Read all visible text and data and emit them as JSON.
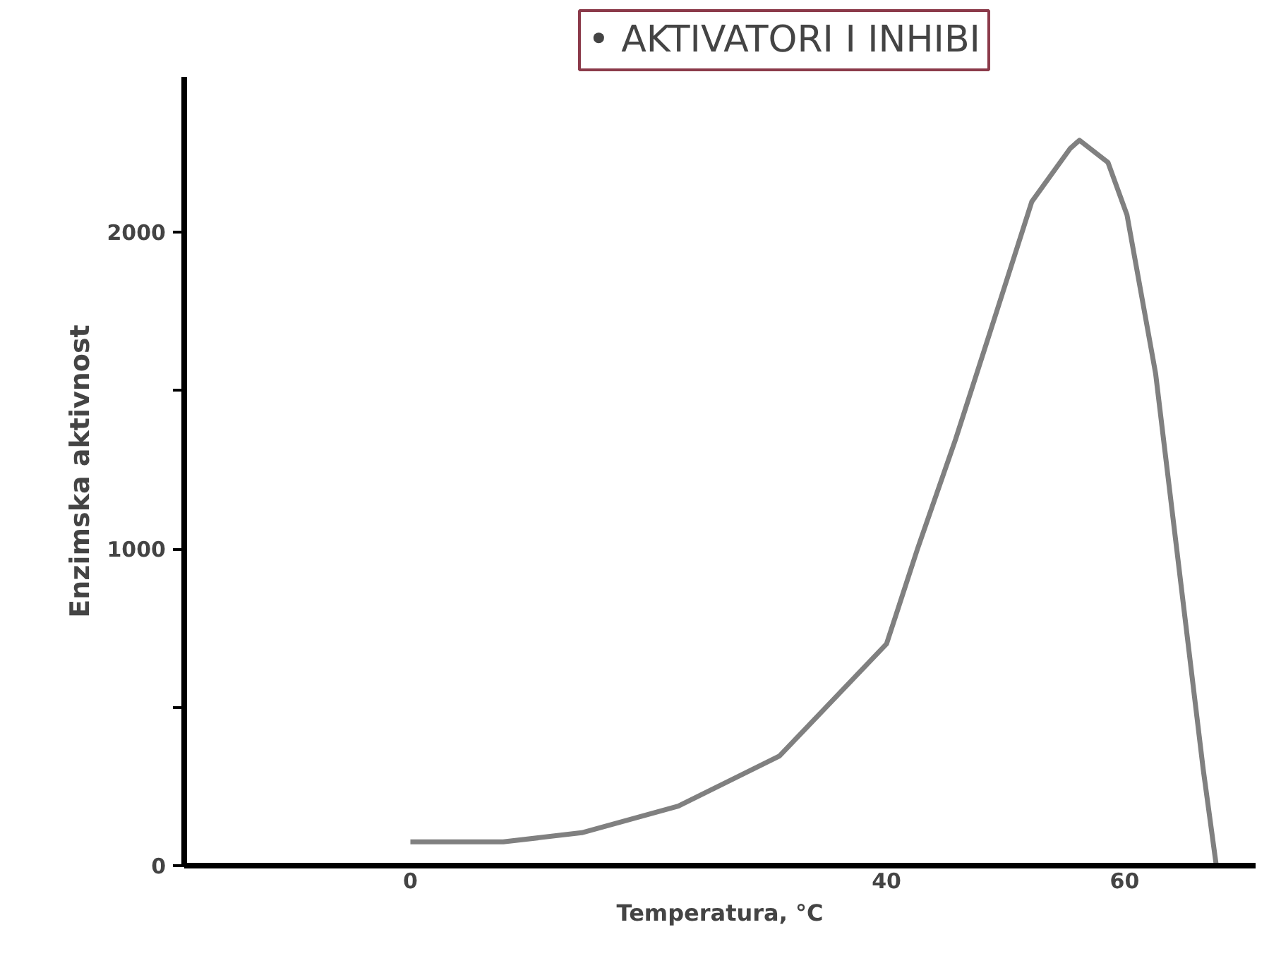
{
  "chart_data": {
    "type": "line",
    "title": "• AKTIVATORI I INHIBI",
    "xlabel": "Temperatura, °C",
    "ylabel": "Enzimska aktivnost",
    "x": [
      0,
      7.8,
      14.4,
      22.5,
      31.0,
      40,
      42.6,
      45.8,
      49.0,
      52.2,
      55.4,
      56.2,
      58.6,
      60.2,
      62.6,
      65.0,
      66.6,
      67.7
    ],
    "series": [
      {
        "color": "#808080",
        "values": [
          75,
          75,
          104,
          188,
          346,
          700,
          1000,
          1346,
          1720,
          2096,
          2263,
          2290,
          2220,
          2054,
          1554,
          804,
          304,
          0
        ]
      }
    ],
    "xlim": [
      -19,
      71
    ],
    "ylim": [
      0,
      2490
    ],
    "xticks": [
      0,
      40,
      60
    ],
    "yticks": [
      0,
      {
        "value": 500,
        "label": null
      },
      1000,
      {
        "value": 1500,
        "label": null
      },
      2000
    ],
    "grid": false,
    "marker": "none",
    "line_style": "solid"
  }
}
